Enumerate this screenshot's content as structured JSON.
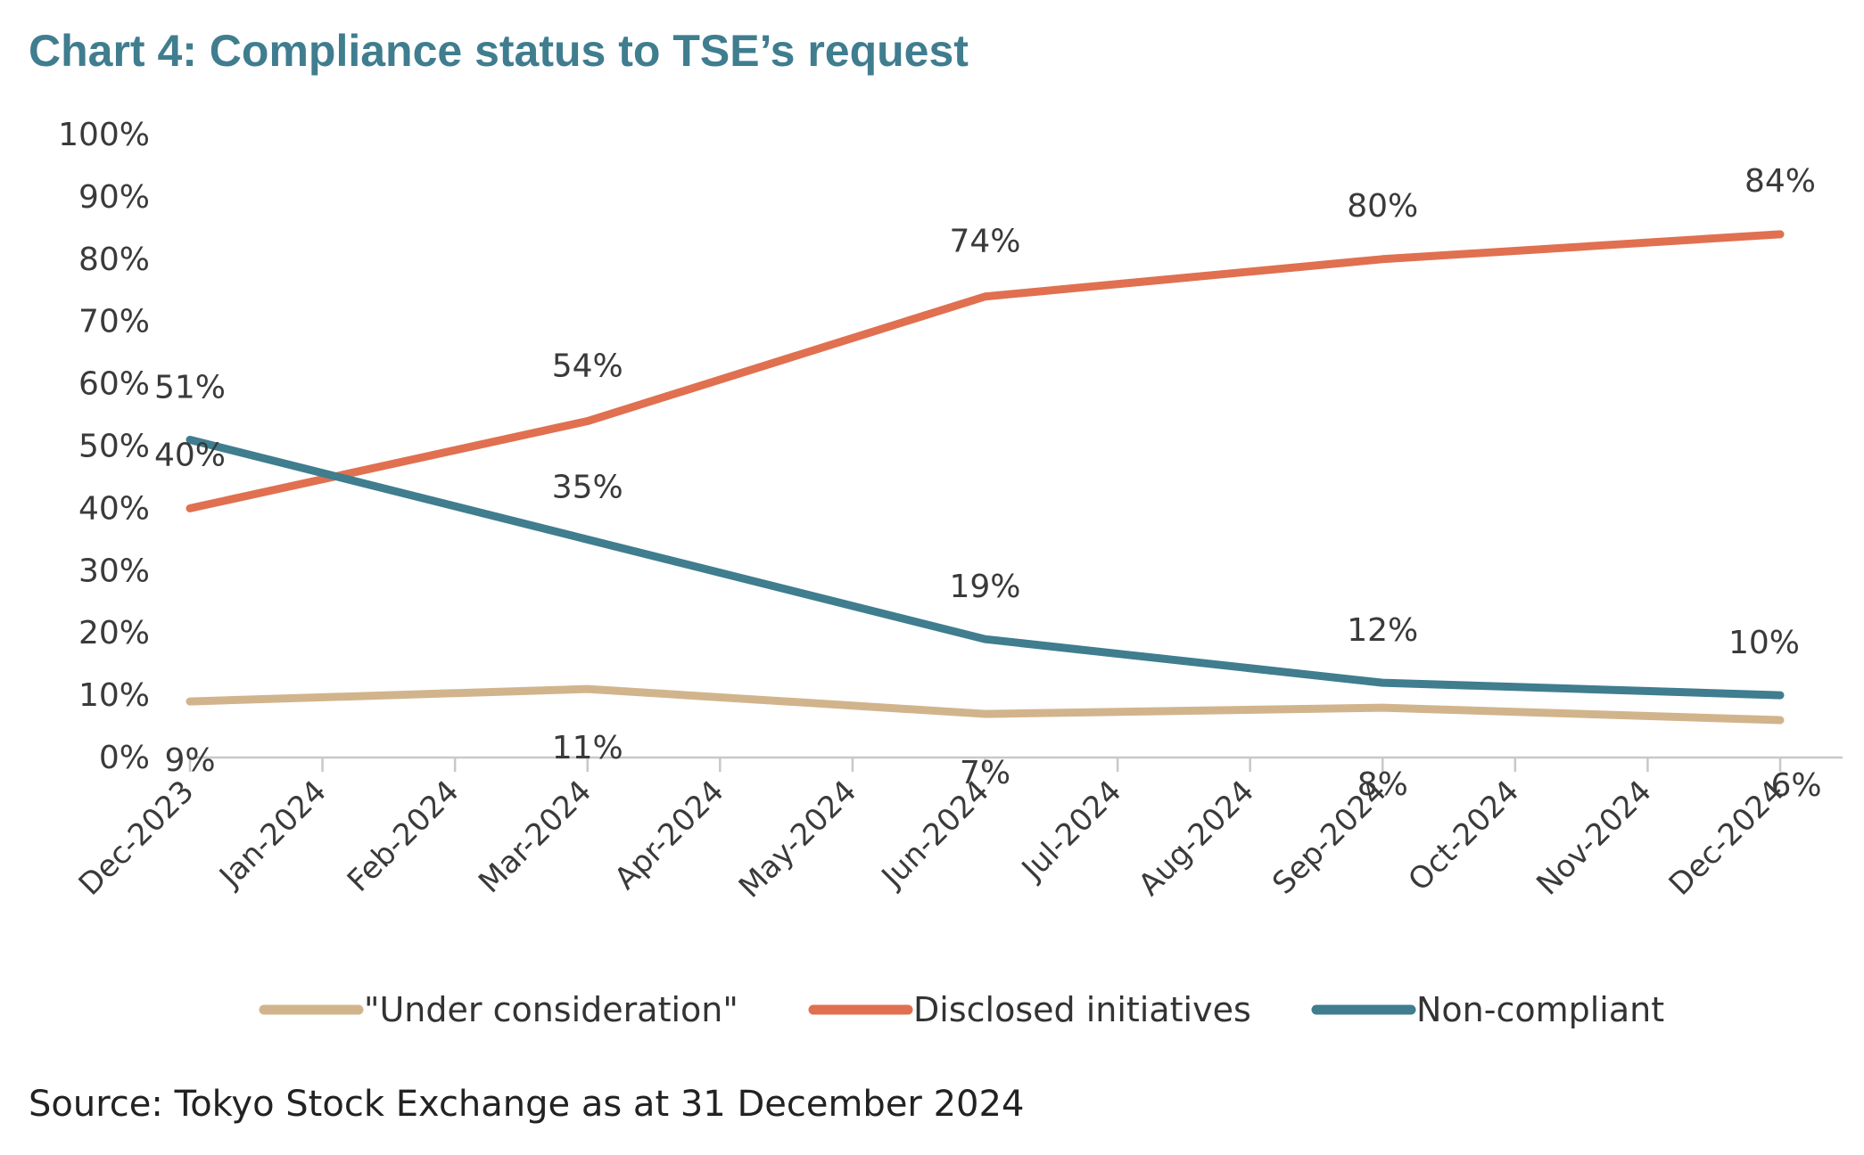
{
  "header": {
    "title": "Chart 4: Compliance status to TSE’s request"
  },
  "footer": {
    "source": "Source: Tokyo Stock Exchange as at 31 December 2024"
  },
  "chart_data": {
    "type": "line",
    "title": "Chart 4: Compliance status to TSE’s request",
    "categories": [
      "Dec-2023",
      "Jan-2024",
      "Feb-2024",
      "Mar-2024",
      "Apr-2024",
      "May-2024",
      "Jun-2024",
      "Jul-2024",
      "Aug-2024",
      "Sep-2024",
      "Oct-2024",
      "Nov-2024",
      "Dec-2024"
    ],
    "ylim": [
      0,
      100
    ],
    "yticks": [
      "0%",
      "10%",
      "20%",
      "30%",
      "40%",
      "50%",
      "60%",
      "70%",
      "80%",
      "90%",
      "100%"
    ],
    "grid": false,
    "legend_position": "bottom",
    "series": [
      {
        "name": "\"Under consideration\"",
        "color": "#d2b48c",
        "points": [
          {
            "x": "Dec-2023",
            "y": 9,
            "label": "9%"
          },
          {
            "x": "Mar-2024",
            "y": 11,
            "label": "11%"
          },
          {
            "x": "Jun-2024",
            "y": 7,
            "label": "7%"
          },
          {
            "x": "Sep-2024",
            "y": 8,
            "label": "8%"
          },
          {
            "x": "Dec-2024",
            "y": 6,
            "label": "6%"
          }
        ]
      },
      {
        "name": "Disclosed initiatives",
        "color": "#e07050",
        "points": [
          {
            "x": "Dec-2023",
            "y": 40,
            "label": "40%"
          },
          {
            "x": "Mar-2024",
            "y": 54,
            "label": "54%"
          },
          {
            "x": "Jun-2024",
            "y": 74,
            "label": "74%"
          },
          {
            "x": "Sep-2024",
            "y": 80,
            "label": "80%"
          },
          {
            "x": "Dec-2024",
            "y": 84,
            "label": "84%"
          }
        ]
      },
      {
        "name": "Non-compliant",
        "color": "#3f7d8f",
        "points": [
          {
            "x": "Dec-2023",
            "y": 51,
            "label": "51%"
          },
          {
            "x": "Mar-2024",
            "y": 35,
            "label": "35%"
          },
          {
            "x": "Jun-2024",
            "y": 19,
            "label": "19%"
          },
          {
            "x": "Sep-2024",
            "y": 12,
            "label": "12%"
          },
          {
            "x": "Dec-2024",
            "y": 10,
            "label": "10%"
          }
        ]
      }
    ]
  }
}
